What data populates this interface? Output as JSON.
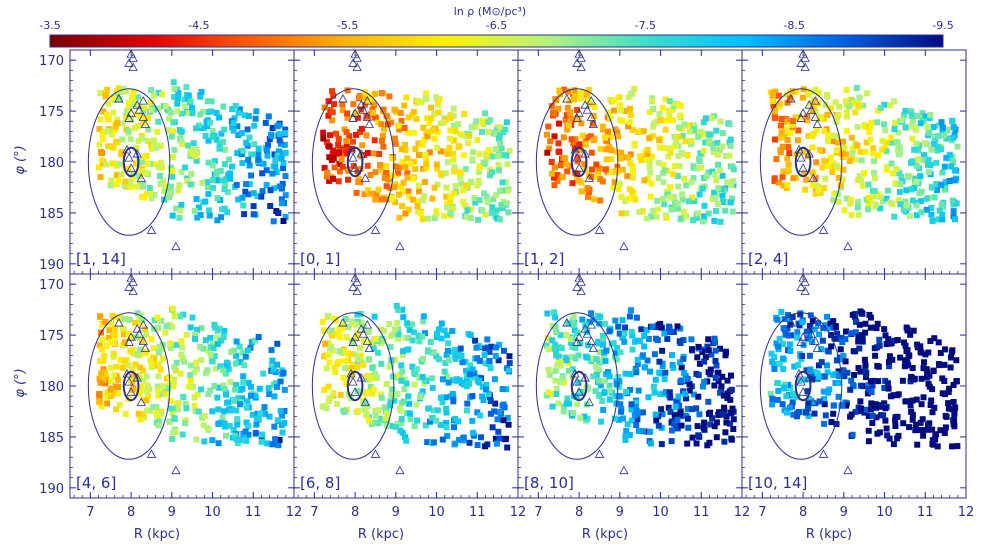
{
  "colorbar": {
    "label": "ln ρ (M⊙/pc³)",
    "ticks": [
      "-3.5",
      "-4.5",
      "-5.5",
      "-6.5",
      "-7.5",
      "-8.5",
      "-9.5"
    ],
    "range": [
      -3.5,
      -9.5
    ],
    "stops": [
      "#7a0000",
      "#e00000",
      "#ff5a00",
      "#ffb400",
      "#fff200",
      "#b8f27a",
      "#3fe0c8",
      "#00bfff",
      "#0060e0",
      "#000c80"
    ]
  },
  "axes": {
    "ylabel": "φ (°)",
    "xlabel": "R (kpc)",
    "xticks": [
      "7",
      "8",
      "9",
      "10",
      "11",
      "12"
    ],
    "yticks": [
      "170",
      "175",
      "180",
      "185",
      "190"
    ],
    "xlim": [
      6.5,
      12
    ],
    "ylim": [
      169,
      191
    ]
  },
  "chart_data": {
    "type": "heatmap",
    "title": "",
    "xlabel": "R (kpc)",
    "ylabel": "φ (°)",
    "xlim": [
      6.5,
      12
    ],
    "ylim": [
      169,
      191
    ],
    "colorbar_label": "ln ρ (M⊙/pc³)",
    "colorbar_range": [
      -3.5,
      -9.5
    ],
    "grid": false,
    "panels": [
      {
        "label": "[1, 14]",
        "bias": 0.25
      },
      {
        "label": "[0, 1]",
        "bias": 0.0
      },
      {
        "label": "[1, 2]",
        "bias": 0.05
      },
      {
        "label": "[2, 4]",
        "bias": 0.12
      },
      {
        "label": "[4, 6]",
        "bias": 0.2
      },
      {
        "label": "[6, 8]",
        "bias": 0.28
      },
      {
        "label": "[8, 10]",
        "bias": 0.42
      },
      {
        "label": "[10, 14]",
        "bias": 0.6
      }
    ],
    "triangles": [
      [
        8.0,
        169.4
      ],
      [
        8.05,
        169.8
      ],
      [
        7.95,
        170.3
      ],
      [
        8.05,
        170.7
      ],
      [
        7.7,
        173.8
      ],
      [
        8.3,
        174.0
      ],
      [
        8.15,
        174.4
      ],
      [
        8.2,
        174.9
      ],
      [
        8.0,
        175.2
      ],
      [
        7.95,
        175.7
      ],
      [
        8.3,
        175.6
      ],
      [
        8.35,
        176.3
      ],
      [
        7.9,
        178.8
      ],
      [
        7.95,
        179.6
      ],
      [
        8.15,
        179.2
      ],
      [
        8.0,
        180.6
      ],
      [
        8.25,
        181.6
      ],
      [
        8.5,
        186.7
      ],
      [
        9.1,
        188.3
      ]
    ],
    "large_ellipse": {
      "cx": 7.95,
      "cy": 180.0,
      "rx": 1.0,
      "ry": 7.2
    },
    "small_ellipse": {
      "cx": 8.0,
      "cy": 180.0,
      "rx": 0.18,
      "ry": 1.4
    }
  }
}
